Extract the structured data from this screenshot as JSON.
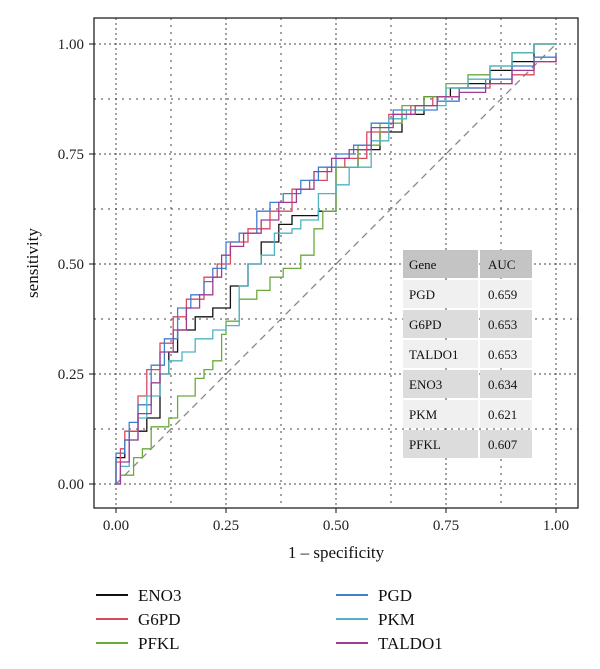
{
  "chart_data": {
    "type": "line",
    "xlabel": "1 – specificity",
    "ylabel": "sensitivity",
    "xlim": [
      0,
      1
    ],
    "ylim": [
      0,
      1
    ],
    "x_ticks": [
      "0.00",
      "0.25",
      "0.50",
      "0.75",
      "1.00"
    ],
    "y_ticks": [
      "0.00",
      "0.25",
      "0.50",
      "0.75",
      "1.00"
    ],
    "grid": "dotted",
    "reference_line": {
      "style": "dashed",
      "from": [
        0,
        0
      ],
      "to": [
        1,
        1
      ]
    },
    "legend_position": "bottom",
    "series": [
      {
        "name": "ENO3",
        "color": "#111111",
        "points": [
          [
            0,
            0
          ],
          [
            0,
            0.06
          ],
          [
            0.02,
            0.06
          ],
          [
            0.02,
            0.1
          ],
          [
            0.03,
            0.12
          ],
          [
            0.06,
            0.12
          ],
          [
            0.07,
            0.15
          ],
          [
            0.1,
            0.25
          ],
          [
            0.12,
            0.3
          ],
          [
            0.14,
            0.35
          ],
          [
            0.18,
            0.38
          ],
          [
            0.22,
            0.4
          ],
          [
            0.26,
            0.45
          ],
          [
            0.3,
            0.5
          ],
          [
            0.33,
            0.55
          ],
          [
            0.37,
            0.59
          ],
          [
            0.4,
            0.61
          ],
          [
            0.46,
            0.62
          ],
          [
            0.5,
            0.72
          ],
          [
            0.55,
            0.76
          ],
          [
            0.6,
            0.8
          ],
          [
            0.65,
            0.84
          ],
          [
            0.7,
            0.88
          ],
          [
            0.76,
            0.9
          ],
          [
            0.8,
            0.91
          ],
          [
            0.85,
            0.94
          ],
          [
            0.9,
            0.96
          ],
          [
            0.95,
            1.0
          ],
          [
            1,
            1.0
          ]
        ]
      },
      {
        "name": "G6PD",
        "color": "#d9485f",
        "points": [
          [
            0,
            0
          ],
          [
            0,
            0.05
          ],
          [
            0.01,
            0.08
          ],
          [
            0.02,
            0.12
          ],
          [
            0.05,
            0.2
          ],
          [
            0.07,
            0.26
          ],
          [
            0.1,
            0.32
          ],
          [
            0.13,
            0.38
          ],
          [
            0.16,
            0.42
          ],
          [
            0.2,
            0.47
          ],
          [
            0.23,
            0.5
          ],
          [
            0.26,
            0.55
          ],
          [
            0.3,
            0.58
          ],
          [
            0.35,
            0.62
          ],
          [
            0.4,
            0.67
          ],
          [
            0.44,
            0.69
          ],
          [
            0.48,
            0.72
          ],
          [
            0.52,
            0.74
          ],
          [
            0.57,
            0.8
          ],
          [
            0.62,
            0.84
          ],
          [
            0.67,
            0.86
          ],
          [
            0.72,
            0.88
          ],
          [
            0.78,
            0.9
          ],
          [
            0.85,
            0.91
          ],
          [
            0.9,
            0.93
          ],
          [
            0.95,
            0.96
          ],
          [
            1,
            0.98
          ]
        ]
      },
      {
        "name": "PFKL",
        "color": "#6aab3c",
        "points": [
          [
            0,
            0
          ],
          [
            0.01,
            0.02
          ],
          [
            0.04,
            0.06
          ],
          [
            0.06,
            0.08
          ],
          [
            0.08,
            0.13
          ],
          [
            0.12,
            0.15
          ],
          [
            0.14,
            0.2
          ],
          [
            0.18,
            0.24
          ],
          [
            0.2,
            0.26
          ],
          [
            0.22,
            0.28
          ],
          [
            0.24,
            0.34
          ],
          [
            0.25,
            0.37
          ],
          [
            0.28,
            0.42
          ],
          [
            0.32,
            0.44
          ],
          [
            0.35,
            0.47
          ],
          [
            0.38,
            0.49
          ],
          [
            0.42,
            0.52
          ],
          [
            0.45,
            0.58
          ],
          [
            0.47,
            0.62
          ],
          [
            0.5,
            0.72
          ],
          [
            0.55,
            0.77
          ],
          [
            0.6,
            0.82
          ],
          [
            0.65,
            0.86
          ],
          [
            0.7,
            0.88
          ],
          [
            0.75,
            0.91
          ],
          [
            0.8,
            0.93
          ],
          [
            0.85,
            0.95
          ],
          [
            0.9,
            0.98
          ],
          [
            0.95,
            1.0
          ],
          [
            1,
            1.0
          ]
        ]
      },
      {
        "name": "PGD",
        "color": "#3f7fd0",
        "points": [
          [
            0,
            0
          ],
          [
            0,
            0.07
          ],
          [
            0.02,
            0.1
          ],
          [
            0.03,
            0.14
          ],
          [
            0.05,
            0.18
          ],
          [
            0.08,
            0.27
          ],
          [
            0.11,
            0.33
          ],
          [
            0.14,
            0.4
          ],
          [
            0.17,
            0.43
          ],
          [
            0.2,
            0.46
          ],
          [
            0.22,
            0.49
          ],
          [
            0.25,
            0.55
          ],
          [
            0.28,
            0.57
          ],
          [
            0.32,
            0.62
          ],
          [
            0.35,
            0.64
          ],
          [
            0.38,
            0.66
          ],
          [
            0.42,
            0.69
          ],
          [
            0.46,
            0.72
          ],
          [
            0.5,
            0.75
          ],
          [
            0.54,
            0.77
          ],
          [
            0.58,
            0.82
          ],
          [
            0.63,
            0.85
          ],
          [
            0.68,
            0.85
          ],
          [
            0.73,
            0.87
          ],
          [
            0.78,
            0.9
          ],
          [
            0.84,
            0.92
          ],
          [
            0.9,
            0.95
          ],
          [
            0.95,
            0.97
          ],
          [
            1,
            0.98
          ]
        ]
      },
      {
        "name": "PKM",
        "color": "#4fb3c4",
        "points": [
          [
            0,
            0
          ],
          [
            0.01,
            0.04
          ],
          [
            0.03,
            0.1
          ],
          [
            0.05,
            0.15
          ],
          [
            0.07,
            0.2
          ],
          [
            0.1,
            0.25
          ],
          [
            0.12,
            0.28
          ],
          [
            0.15,
            0.3
          ],
          [
            0.18,
            0.33
          ],
          [
            0.22,
            0.35
          ],
          [
            0.25,
            0.36
          ],
          [
            0.28,
            0.45
          ],
          [
            0.3,
            0.5
          ],
          [
            0.33,
            0.52
          ],
          [
            0.36,
            0.57
          ],
          [
            0.4,
            0.58
          ],
          [
            0.42,
            0.6
          ],
          [
            0.46,
            0.66
          ],
          [
            0.5,
            0.68
          ],
          [
            0.53,
            0.72
          ],
          [
            0.58,
            0.78
          ],
          [
            0.62,
            0.83
          ],
          [
            0.66,
            0.85
          ],
          [
            0.7,
            0.86
          ],
          [
            0.75,
            0.9
          ],
          [
            0.8,
            0.92
          ],
          [
            0.85,
            0.95
          ],
          [
            0.9,
            0.98
          ],
          [
            0.95,
            1.0
          ],
          [
            1,
            1.0
          ]
        ]
      },
      {
        "name": "TALDO1",
        "color": "#a23b8f",
        "points": [
          [
            0,
            0
          ],
          [
            0.01,
            0.05
          ],
          [
            0.03,
            0.1
          ],
          [
            0.05,
            0.16
          ],
          [
            0.08,
            0.23
          ],
          [
            0.1,
            0.3
          ],
          [
            0.13,
            0.35
          ],
          [
            0.16,
            0.4
          ],
          [
            0.19,
            0.43
          ],
          [
            0.22,
            0.47
          ],
          [
            0.24,
            0.52
          ],
          [
            0.26,
            0.54
          ],
          [
            0.29,
            0.57
          ],
          [
            0.33,
            0.6
          ],
          [
            0.37,
            0.64
          ],
          [
            0.41,
            0.67
          ],
          [
            0.45,
            0.71
          ],
          [
            0.49,
            0.74
          ],
          [
            0.53,
            0.76
          ],
          [
            0.58,
            0.81
          ],
          [
            0.63,
            0.84
          ],
          [
            0.68,
            0.86
          ],
          [
            0.73,
            0.88
          ],
          [
            0.78,
            0.89
          ],
          [
            0.84,
            0.91
          ],
          [
            0.9,
            0.94
          ],
          [
            0.95,
            0.96
          ],
          [
            1,
            0.97
          ]
        ]
      }
    ],
    "auc_table": {
      "headers": [
        "Gene",
        "AUC"
      ],
      "rows": [
        [
          "PGD",
          "0.659"
        ],
        [
          "G6PD",
          "0.653"
        ],
        [
          "TALDO1",
          "0.653"
        ],
        [
          "ENO3",
          "0.634"
        ],
        [
          "PKM",
          "0.621"
        ],
        [
          "PFKL",
          "0.607"
        ]
      ]
    },
    "legend_order": [
      "ENO3",
      "G6PD",
      "PFKL",
      "PGD",
      "PKM",
      "TALDO1"
    ]
  }
}
